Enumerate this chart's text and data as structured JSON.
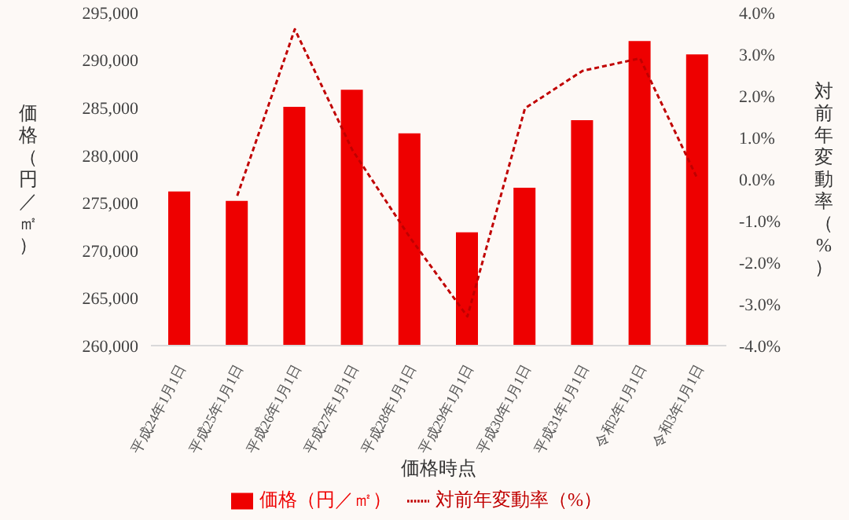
{
  "chart_data": {
    "type": "bar",
    "xlabel": "価格時点",
    "ylabel": "価格（円／㎡）",
    "y2label": "対前年変動率（%）",
    "categories": [
      "平成24年1月1日",
      "平成25年1月1日",
      "平成26年1月1日",
      "平成27年1月1日",
      "平成28年1月1日",
      "平成29年1月1日",
      "平成30年1月1日",
      "平成31年1月1日",
      "令和2年1月1日",
      "令和3年1月1日"
    ],
    "series": [
      {
        "name": "価格（円／㎡）",
        "color": "#ee0000",
        "values": [
          276200,
          275200,
          285100,
          286900,
          282300,
          271900,
          276600,
          283700,
          292000,
          290600
        ]
      },
      {
        "name": "対前年変動率（%）",
        "type": "line",
        "axis": "y2",
        "color": "#c00000",
        "line_style": "dashed",
        "values": [
          null,
          -0.4,
          3.6,
          0.7,
          -1.4,
          -3.3,
          1.7,
          2.6,
          2.9,
          0.0
        ]
      }
    ],
    "ylim": [
      260000,
      295000
    ],
    "yticks": [
      {
        "value": 260000,
        "label": "260,000"
      },
      {
        "value": 265000,
        "label": "265,000"
      },
      {
        "value": 270000,
        "label": "270,000"
      },
      {
        "value": 275000,
        "label": "275,000"
      },
      {
        "value": 280000,
        "label": "280,000"
      },
      {
        "value": 285000,
        "label": "285,000"
      },
      {
        "value": 290000,
        "label": "290,000"
      },
      {
        "value": 295000,
        "label": "295,000"
      }
    ],
    "y2lim": [
      -4,
      4
    ],
    "y2ticks": [
      {
        "value": -4,
        "label": "-4.0%"
      },
      {
        "value": -3,
        "label": "-3.0%"
      },
      {
        "value": -2,
        "label": "-2.0%"
      },
      {
        "value": -1,
        "label": "-1.0%"
      },
      {
        "value": 0,
        "label": "0.0%"
      },
      {
        "value": 1,
        "label": "1.0%"
      },
      {
        "value": 2,
        "label": "2.0%"
      },
      {
        "value": 3,
        "label": "3.0%"
      },
      {
        "value": 4,
        "label": "4.0%"
      }
    ],
    "grid": false,
    "legend": "bottom",
    "marker": "none"
  }
}
